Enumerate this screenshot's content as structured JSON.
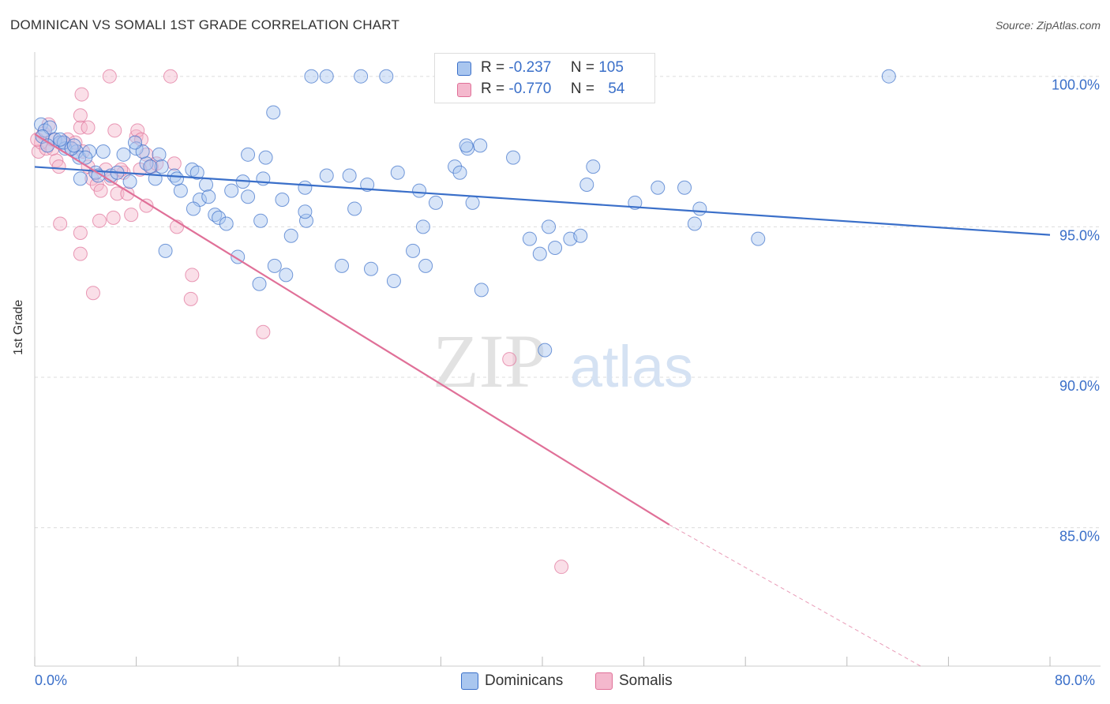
{
  "title": "DOMINICAN VS SOMALI 1ST GRADE CORRELATION CHART",
  "source": "Source: ZipAtlas.com",
  "colors": {
    "blue": "#3a6fc9",
    "blue_fill": "#a9c6ef",
    "pink": "#e07098",
    "pink_fill": "#f4b8cd"
  },
  "legend": {
    "dominicans": {
      "r_label": "R =",
      "r_value": "-0.237",
      "n_label": "N =",
      "n_value": "105"
    },
    "somalis": {
      "r_label": "R =",
      "r_value": "-0.770",
      "n_label": "N =",
      "n_value": "54"
    }
  },
  "bottom_legend": {
    "dominicans": "Dominicans",
    "somalis": "Somalis"
  },
  "chart_data": {
    "type": "scatter",
    "title": "DOMINICAN VS SOMALI 1ST GRADE CORRELATION CHART",
    "xlabel": "",
    "ylabel": "1st Grade",
    "xlim": [
      0,
      80
    ],
    "ylim": [
      80.4,
      100.7
    ],
    "x_tick_labels": [
      "0.0%",
      "80.0%"
    ],
    "y_tick_labels": [
      "85.0%",
      "90.0%",
      "95.0%",
      "100.0%"
    ],
    "y_ticks": [
      85,
      90,
      95,
      100
    ],
    "grid": "horizontal dashed",
    "series": [
      {
        "name": "Dominicans",
        "trend": {
          "x": [
            0,
            80
          ],
          "y": [
            96.99,
            94.73
          ]
        },
        "points": [
          [
            0.5,
            98.4
          ],
          [
            0.8,
            98.2
          ],
          [
            1.2,
            98.3
          ],
          [
            1.6,
            97.9
          ],
          [
            2.0,
            97.8
          ],
          [
            2.4,
            97.6
          ],
          [
            0.6,
            98.0
          ],
          [
            1.0,
            97.7
          ],
          [
            3.3,
            97.5
          ],
          [
            3.5,
            97.3
          ],
          [
            4.3,
            97.5
          ],
          [
            5.4,
            97.5
          ],
          [
            7.0,
            97.4
          ],
          [
            8.0,
            97.6
          ],
          [
            9.8,
            97.4
          ],
          [
            8.8,
            97.1
          ],
          [
            7.5,
            96.5
          ],
          [
            6.0,
            96.7
          ],
          [
            4.8,
            96.8
          ],
          [
            3.6,
            96.6
          ],
          [
            2.3,
            97.8
          ],
          [
            2.9,
            97.6
          ],
          [
            6.5,
            96.8
          ],
          [
            9.5,
            96.6
          ],
          [
            10.0,
            97.0
          ],
          [
            11.0,
            96.7
          ],
          [
            12.4,
            96.9
          ],
          [
            12.8,
            96.8
          ],
          [
            11.5,
            96.2
          ],
          [
            13.5,
            96.4
          ],
          [
            15.5,
            96.2
          ],
          [
            16.8,
            96.0
          ],
          [
            18.0,
            96.6
          ],
          [
            19.5,
            95.9
          ],
          [
            21.3,
            96.3
          ],
          [
            23.0,
            96.7
          ],
          [
            24.8,
            96.7
          ],
          [
            26.2,
            96.4
          ],
          [
            28.6,
            96.8
          ],
          [
            30.3,
            96.2
          ],
          [
            31.6,
            95.8
          ],
          [
            33.1,
            97.0
          ],
          [
            18.2,
            97.3
          ],
          [
            16.8,
            97.4
          ],
          [
            13.0,
            95.9
          ],
          [
            12.5,
            95.6
          ],
          [
            14.2,
            95.4
          ],
          [
            14.5,
            95.3
          ],
          [
            15.1,
            95.1
          ],
          [
            17.8,
            95.2
          ],
          [
            21.4,
            95.2
          ],
          [
            21.3,
            95.5
          ],
          [
            25.2,
            95.6
          ],
          [
            30.6,
            95.0
          ],
          [
            34.5,
            95.8
          ],
          [
            40.5,
            95.0
          ],
          [
            39.0,
            94.6
          ],
          [
            39.8,
            94.1
          ],
          [
            42.2,
            94.6
          ],
          [
            43.0,
            94.7
          ],
          [
            41.0,
            94.3
          ],
          [
            18.9,
            93.7
          ],
          [
            19.8,
            93.4
          ],
          [
            16.0,
            94.0
          ],
          [
            17.7,
            93.1
          ],
          [
            24.2,
            93.7
          ],
          [
            26.5,
            93.6
          ],
          [
            28.3,
            93.2
          ],
          [
            30.8,
            93.7
          ],
          [
            35.2,
            92.9
          ],
          [
            20.2,
            94.7
          ],
          [
            29.8,
            94.2
          ],
          [
            10.3,
            94.2
          ],
          [
            33.5,
            96.8
          ],
          [
            35.1,
            97.7
          ],
          [
            37.7,
            97.3
          ],
          [
            44.0,
            97.0
          ],
          [
            43.5,
            96.4
          ],
          [
            47.3,
            95.8
          ],
          [
            49.1,
            96.3
          ],
          [
            51.2,
            96.3
          ],
          [
            52.0,
            95.1
          ],
          [
            52.4,
            95.6
          ],
          [
            57.0,
            94.6
          ],
          [
            40.2,
            90.9
          ],
          [
            18.8,
            98.8
          ],
          [
            21.8,
            100.0
          ],
          [
            23.0,
            100.0
          ],
          [
            25.7,
            100.0
          ],
          [
            27.7,
            100.0
          ],
          [
            32.6,
            100.0
          ],
          [
            43.4,
            100.0
          ],
          [
            67.3,
            100.0
          ],
          [
            34.1,
            97.6
          ],
          [
            34.0,
            97.7
          ],
          [
            8.5,
            97.5
          ],
          [
            7.9,
            97.8
          ],
          [
            9.1,
            97.0
          ],
          [
            11.2,
            96.6
          ],
          [
            2.0,
            97.9
          ],
          [
            3.1,
            97.7
          ],
          [
            4.0,
            97.3
          ],
          [
            5.0,
            96.7
          ],
          [
            13.7,
            96.0
          ],
          [
            16.4,
            96.5
          ]
        ]
      },
      {
        "name": "Somalis",
        "trend": {
          "x": [
            0,
            50.0
          ],
          "y": [
            98.08,
            85.1
          ]
        },
        "trend_dashed": {
          "x": [
            50.0,
            69.8
          ],
          "y": [
            85.1,
            80.4
          ]
        },
        "points": [
          [
            0.3,
            97.5
          ],
          [
            0.5,
            97.8
          ],
          [
            0.7,
            98.1
          ],
          [
            0.9,
            97.6
          ],
          [
            1.1,
            98.4
          ],
          [
            1.4,
            97.9
          ],
          [
            1.7,
            97.2
          ],
          [
            1.9,
            97.0
          ],
          [
            2.2,
            97.8
          ],
          [
            2.6,
            97.9
          ],
          [
            2.9,
            97.6
          ],
          [
            3.2,
            97.8
          ],
          [
            3.6,
            98.3
          ],
          [
            3.8,
            97.5
          ],
          [
            4.2,
            97.0
          ],
          [
            4.5,
            96.6
          ],
          [
            4.9,
            96.4
          ],
          [
            5.2,
            96.2
          ],
          [
            5.6,
            96.9
          ],
          [
            6.0,
            96.6
          ],
          [
            6.5,
            96.1
          ],
          [
            7.0,
            96.8
          ],
          [
            7.3,
            96.1
          ],
          [
            7.6,
            95.4
          ],
          [
            8.0,
            98.0
          ],
          [
            8.3,
            96.9
          ],
          [
            8.8,
            97.4
          ],
          [
            9.2,
            97.0
          ],
          [
            9.6,
            97.1
          ],
          [
            2.0,
            95.1
          ],
          [
            3.6,
            94.8
          ],
          [
            5.1,
            95.2
          ],
          [
            6.2,
            95.3
          ],
          [
            8.8,
            95.7
          ],
          [
            11.2,
            95.0
          ],
          [
            3.6,
            94.1
          ],
          [
            4.6,
            92.8
          ],
          [
            12.4,
            93.4
          ],
          [
            12.3,
            92.6
          ],
          [
            18.0,
            91.5
          ],
          [
            37.4,
            90.6
          ],
          [
            41.5,
            83.7
          ],
          [
            3.7,
            99.4
          ],
          [
            5.9,
            100.0
          ],
          [
            10.7,
            100.0
          ],
          [
            3.6,
            98.7
          ],
          [
            4.2,
            98.3
          ],
          [
            6.3,
            98.2
          ],
          [
            8.1,
            98.2
          ],
          [
            8.4,
            97.9
          ],
          [
            11.0,
            97.1
          ],
          [
            1.4,
            97.6
          ],
          [
            0.2,
            97.9
          ],
          [
            6.8,
            96.9
          ]
        ]
      }
    ]
  }
}
